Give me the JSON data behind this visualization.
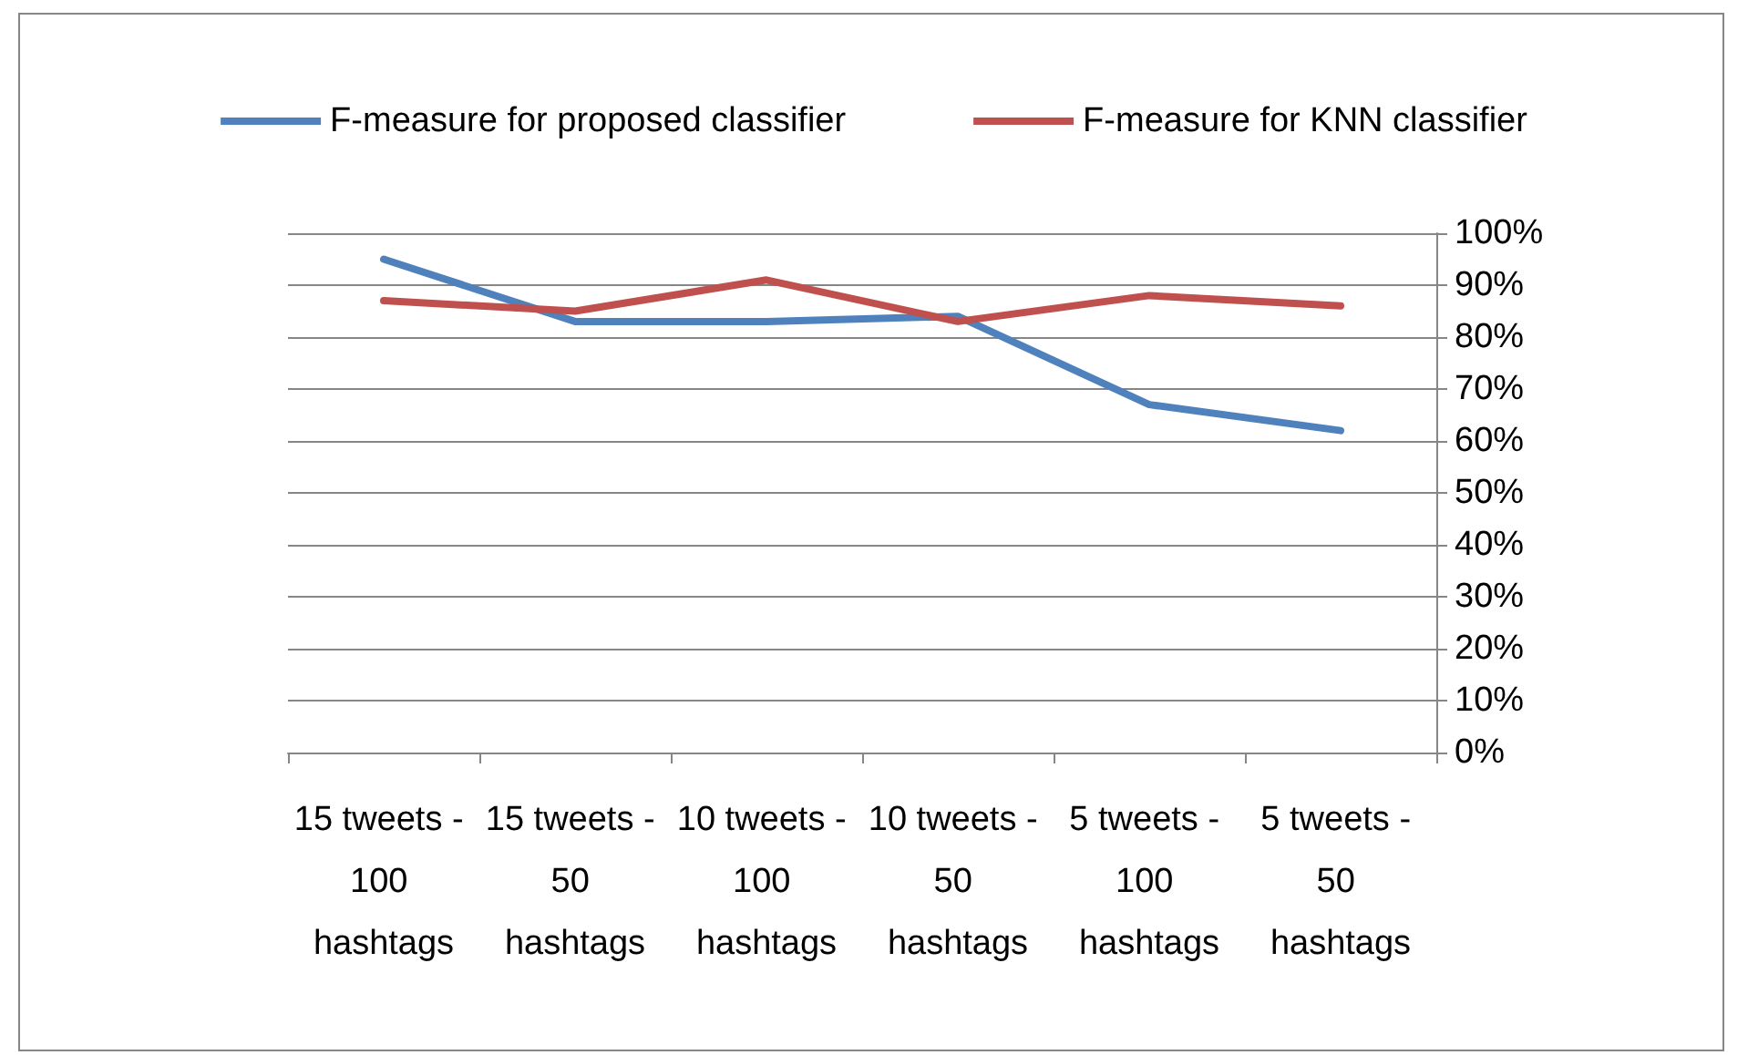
{
  "chart_data": {
    "type": "line",
    "categories": [
      "15 tweets - 100 hashtags",
      "15 tweets - 50 hashtags",
      "10 tweets - 100 hashtags",
      "10 tweets - 50 hashtags",
      "5 tweets - 100 hashtags",
      "5 tweets - 50 hashtags"
    ],
    "series": [
      {
        "name": "F-measure for proposed classifier",
        "color": "#4f81bd",
        "values": [
          95,
          83,
          83,
          84,
          67,
          62
        ]
      },
      {
        "name": "F-measure for KNN classifier",
        "color": "#c0504d",
        "values": [
          87,
          85,
          91,
          83,
          88,
          86
        ]
      }
    ],
    "ylim": [
      0,
      100
    ],
    "yticks": [
      {
        "value": 0,
        "label": "0%"
      },
      {
        "value": 10,
        "label": "10%"
      },
      {
        "value": 20,
        "label": "20%"
      },
      {
        "value": 30,
        "label": "30%"
      },
      {
        "value": 40,
        "label": "40%"
      },
      {
        "value": 50,
        "label": "50%"
      },
      {
        "value": 60,
        "label": "60%"
      },
      {
        "value": 70,
        "label": "70%"
      },
      {
        "value": 80,
        "label": "80%"
      },
      {
        "value": 90,
        "label": "90%"
      },
      {
        "value": 100,
        "label": "100%"
      }
    ],
    "grid": "y",
    "legend": "top",
    "marker": "none",
    "line_style": "solid"
  }
}
